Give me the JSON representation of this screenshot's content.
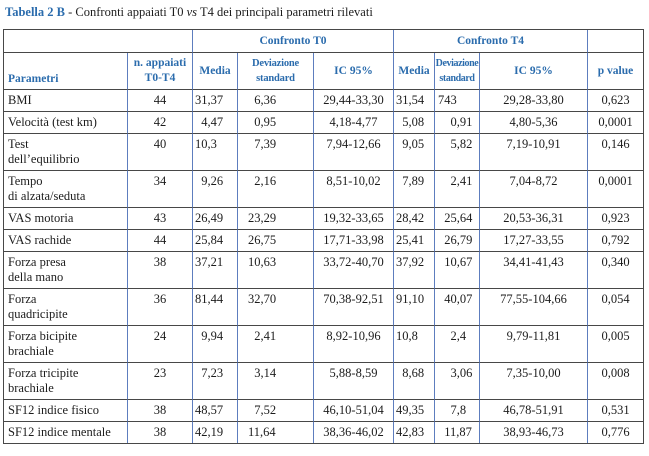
{
  "caption": {
    "label": "Tabella 2 B",
    "separator": " - ",
    "before_vs": "Confronti appaiati T0 ",
    "vs": "vs",
    "after_vs": " T4 dei principali parametri rilevati"
  },
  "colors": {
    "header_text_blue": "#2b6cad",
    "vertical_grid_blue": "#5d7dbe",
    "horizontal_grid_dark": "#474747"
  },
  "table": {
    "group_headers": {
      "t0": "Confronto T0",
      "t4": "Confronto T4"
    },
    "column_headers": {
      "parametri": "Parametri",
      "n": "n. appaiati\nT0-T4",
      "media": "Media",
      "dev": "Deviazione\nstandard",
      "ic": "IC 95%",
      "p": "p value"
    },
    "rows": [
      {
        "param": "BMI",
        "n": "44",
        "media_t0": "31,37",
        "dev_t0": "6,36",
        "ic_t0": "29,44-33,30",
        "media_t4": "31,54",
        "dev_t4": "743",
        "ic_t4": "29,28-33,80",
        "p": "0,623"
      },
      {
        "param": "Velocità (test km)",
        "n": "42",
        "media_t0": "4,47",
        "dev_t0": "0,95",
        "ic_t0": "4,18-4,77",
        "media_t4": "5,08",
        "dev_t4": "0,91",
        "ic_t4": "4,80-5,36",
        "p": "0,0001"
      },
      {
        "param": "Test\ndell’equilibrio",
        "n": "40",
        "media_t0": "10,3",
        "dev_t0": "7,39",
        "ic_t0": "7,94-12,66",
        "media_t4": "9,05",
        "dev_t4": "5,82",
        "ic_t4": "7,19-10,91",
        "p": "0,146"
      },
      {
        "param": "Tempo\ndi alzata/seduta",
        "n": "34",
        "media_t0": "9,26",
        "dev_t0": "2,16",
        "ic_t0": "8,51-10,02",
        "media_t4": "7,89",
        "dev_t4": "2,41",
        "ic_t4": "7,04-8,72",
        "p": "0,0001"
      },
      {
        "param": "VAS motoria",
        "n": "43",
        "media_t0": "26,49",
        "dev_t0": "23,29",
        "ic_t0": "19,32-33,65",
        "media_t4": "28,42",
        "dev_t4": "25,64",
        "ic_t4": "20,53-36,31",
        "p": "0,923"
      },
      {
        "param": "VAS rachide",
        "n": "44",
        "media_t0": "25,84",
        "dev_t0": "26,75",
        "ic_t0": "17,71-33,98",
        "media_t4": "25,41",
        "dev_t4": "26,79",
        "ic_t4": "17,27-33,55",
        "p": "0,792"
      },
      {
        "param": "Forza presa\ndella mano",
        "n": "38",
        "media_t0": "37,21",
        "dev_t0": "10,63",
        "ic_t0": "33,72-40,70",
        "media_t4": "37,92",
        "dev_t4": "10,67",
        "ic_t4": "34,41-41,43",
        "p": "0,340"
      },
      {
        "param": "Forza\nquadricipite",
        "n": "36",
        "media_t0": "81,44",
        "dev_t0": "32,70",
        "ic_t0": "70,38-92,51",
        "media_t4": "91,10",
        "dev_t4": "40,07",
        "ic_t4": "77,55-104,66",
        "p": "0,054"
      },
      {
        "param": "Forza bicipite\nbrachiale",
        "n": "24",
        "media_t0": "9,94",
        "dev_t0": "2,41",
        "ic_t0": "8,92-10,96",
        "media_t4": "10,8",
        "dev_t4": "2,4",
        "ic_t4": "9,79-11,81",
        "p": "0,005"
      },
      {
        "param": "Forza tricipite\nbrachiale",
        "n": "23",
        "media_t0": "7,23",
        "dev_t0": "3,14",
        "ic_t0": "5,88-8,59",
        "media_t4": "8,68",
        "dev_t4": "3,06",
        "ic_t4": "7,35-10,00",
        "p": "0,008"
      },
      {
        "param": "SF12 indice fisico",
        "n": "38",
        "media_t0": "48,57",
        "dev_t0": "7,52",
        "ic_t0": "46,10-51,04",
        "media_t4": "49,35",
        "dev_t4": "7,8",
        "ic_t4": "46,78-51,91",
        "p": "0,531"
      },
      {
        "param": "SF12 indice mentale",
        "n": "38",
        "media_t0": "42,19",
        "dev_t0": "11,64",
        "ic_t0": "38,36-46,02",
        "media_t4": "42,83",
        "dev_t4": "11,87",
        "ic_t4": "38,93-46,73",
        "p": "0,776"
      }
    ]
  }
}
